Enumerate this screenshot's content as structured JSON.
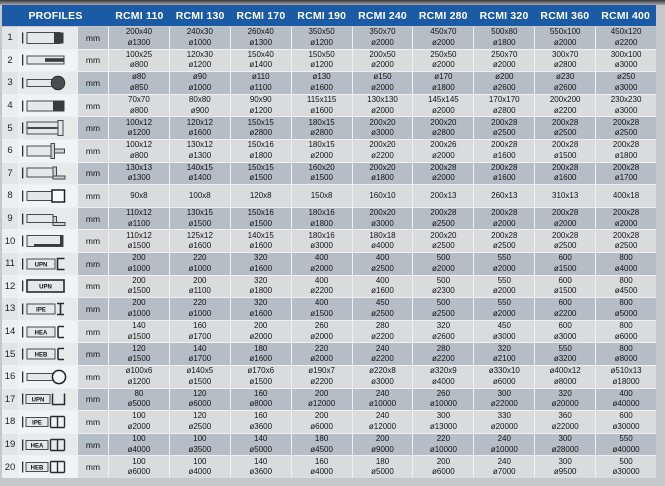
{
  "table": {
    "header": {
      "profiles_label": "PROFILES",
      "unit_label": "mm",
      "columns": [
        "RCMI 110",
        "RCMI 130",
        "RCMI 170",
        "RCMI 190",
        "RCMI 240",
        "RCMI 280",
        "RCMI 320",
        "RCMI 360",
        "RCMI 400"
      ]
    },
    "rows": [
      {
        "num": "1",
        "icon": "flat-bar-on-edge",
        "label": "",
        "cells": [
          [
            "200x40",
            "ø1300"
          ],
          [
            "240x30",
            "ø1000"
          ],
          [
            "260x40",
            "ø1300"
          ],
          [
            "350x50",
            "ø1200"
          ],
          [
            "350x70",
            "ø2000"
          ],
          [
            "450x70",
            "ø2000"
          ],
          [
            "500x80",
            "ø1800"
          ],
          [
            "550x100",
            "ø2000"
          ],
          [
            "450x120",
            "ø2200"
          ]
        ]
      },
      {
        "num": "2",
        "icon": "flat-bar-flat",
        "label": "",
        "cells": [
          [
            "100x25",
            "ø800"
          ],
          [
            "120x30",
            "ø1200"
          ],
          [
            "150x40",
            "ø1400"
          ],
          [
            "150x50",
            "ø1200"
          ],
          [
            "200x50",
            "ø2000"
          ],
          [
            "250x50",
            "ø2000"
          ],
          [
            "250x70",
            "ø2000"
          ],
          [
            "300x70",
            "ø2800"
          ],
          [
            "300x100",
            "ø3000"
          ]
        ]
      },
      {
        "num": "3",
        "icon": "round-bar",
        "label": "",
        "cells": [
          [
            "ø80",
            "ø850"
          ],
          [
            "ø90",
            "ø1000"
          ],
          [
            "ø110",
            "ø1100"
          ],
          [
            "ø130",
            "ø1600"
          ],
          [
            "ø150",
            "ø2000"
          ],
          [
            "ø170",
            "ø1800"
          ],
          [
            "ø200",
            "ø2600"
          ],
          [
            "ø230",
            "ø2600"
          ],
          [
            "ø250",
            "ø3000"
          ]
        ]
      },
      {
        "num": "4",
        "icon": "square-bar",
        "label": "",
        "cells": [
          [
            "70x70",
            "ø800"
          ],
          [
            "80x80",
            "ø900"
          ],
          [
            "90x90",
            "ø1200"
          ],
          [
            "115x115",
            "ø1600"
          ],
          [
            "130x130",
            "ø2000"
          ],
          [
            "145x145",
            "ø2000"
          ],
          [
            "170x170",
            "ø2800"
          ],
          [
            "200x200",
            "ø2200"
          ],
          [
            "230x230",
            "ø3000"
          ]
        ]
      },
      {
        "num": "5",
        "icon": "angle-leg-out",
        "label": "",
        "cells": [
          [
            "100x12",
            "ø1200"
          ],
          [
            "120x12",
            "ø1600"
          ],
          [
            "150x15",
            "ø2800"
          ],
          [
            "180x15",
            "ø2800"
          ],
          [
            "200x20",
            "ø3000"
          ],
          [
            "200x20",
            "ø2800"
          ],
          [
            "200x28",
            "ø2500"
          ],
          [
            "200x28",
            "ø2500"
          ],
          [
            "200x28",
            "ø2500"
          ]
        ]
      },
      {
        "num": "6",
        "icon": "t-profile",
        "label": "",
        "cells": [
          [
            "100x12",
            "ø800"
          ],
          [
            "130x12",
            "ø1300"
          ],
          [
            "150x16",
            "ø1800"
          ],
          [
            "180x15",
            "ø2000"
          ],
          [
            "200x20",
            "ø2200"
          ],
          [
            "200x26",
            "ø2000"
          ],
          [
            "200x28",
            "ø1600"
          ],
          [
            "200x28",
            "ø1500"
          ],
          [
            "200x28",
            "ø1800"
          ]
        ]
      },
      {
        "num": "7",
        "icon": "angle-leg-down",
        "label": "",
        "cells": [
          [
            "130x13",
            "ø1300"
          ],
          [
            "140x15",
            "ø1400"
          ],
          [
            "150x15",
            "ø1500"
          ],
          [
            "160x20",
            "ø1500"
          ],
          [
            "200x20",
            "ø1800"
          ],
          [
            "200x28",
            "ø2000"
          ],
          [
            "200x28",
            "ø1600"
          ],
          [
            "200x28",
            "ø1600"
          ],
          [
            "200x28",
            "ø1700"
          ]
        ]
      },
      {
        "num": "8",
        "icon": "square-tube",
        "label": "",
        "cells": [
          [
            "90x8"
          ],
          [
            "100x8"
          ],
          [
            "120x8"
          ],
          [
            "150x8"
          ],
          [
            "160x10"
          ],
          [
            "200x13"
          ],
          [
            "260x13"
          ],
          [
            "310x13"
          ],
          [
            "400x18"
          ]
        ]
      },
      {
        "num": "9",
        "icon": "angle-leg-in",
        "label": "",
        "cells": [
          [
            "110x12",
            "ø1100"
          ],
          [
            "130x15",
            "ø1500"
          ],
          [
            "150x16",
            "ø1500"
          ],
          [
            "180x16",
            "ø1800"
          ],
          [
            "200x20",
            "ø3000"
          ],
          [
            "200x28",
            "ø2500"
          ],
          [
            "200x28",
            "ø2000"
          ],
          [
            "200x28",
            "ø2000"
          ],
          [
            "200x28",
            "ø2000"
          ]
        ]
      },
      {
        "num": "10",
        "icon": "angle-corner",
        "label": "",
        "cells": [
          [
            "110x12",
            "ø1500"
          ],
          [
            "125x12",
            "ø1600"
          ],
          [
            "140x15",
            "ø1600"
          ],
          [
            "180x16",
            "ø3000"
          ],
          [
            "180x18",
            "ø4000"
          ],
          [
            "200x20",
            "ø2500"
          ],
          [
            "200x28",
            "ø2500"
          ],
          [
            "200x28",
            "ø2500"
          ],
          [
            "200x28",
            "ø2500"
          ]
        ]
      },
      {
        "num": "11",
        "icon": "upn-flanges-out",
        "label": "UPN",
        "cells": [
          [
            "200",
            "ø1000"
          ],
          [
            "220",
            "ø1000"
          ],
          [
            "320",
            "ø1600"
          ],
          [
            "400",
            "ø2000"
          ],
          [
            "400",
            "ø2500"
          ],
          [
            "500",
            "ø2000"
          ],
          [
            "550",
            "ø2000"
          ],
          [
            "600",
            "ø1500"
          ],
          [
            "800",
            "ø4000"
          ]
        ]
      },
      {
        "num": "12",
        "icon": "upn-flanges-in",
        "label": "UPN",
        "cells": [
          [
            "200",
            "ø1500"
          ],
          [
            "200",
            "ø1100"
          ],
          [
            "320",
            "ø1800"
          ],
          [
            "400",
            "ø2200"
          ],
          [
            "400",
            "ø1600"
          ],
          [
            "500",
            "ø2300"
          ],
          [
            "550",
            "ø2000"
          ],
          [
            "600",
            "ø1500"
          ],
          [
            "800",
            "ø4500"
          ]
        ]
      },
      {
        "num": "13",
        "icon": "ipe-beam",
        "label": "IPE",
        "cells": [
          [
            "200",
            "ø1000"
          ],
          [
            "220",
            "ø1000"
          ],
          [
            "320",
            "ø1600"
          ],
          [
            "400",
            "ø1500"
          ],
          [
            "450",
            "ø2500"
          ],
          [
            "500",
            "ø2500"
          ],
          [
            "550",
            "ø2000"
          ],
          [
            "600",
            "ø2200"
          ],
          [
            "800",
            "ø5000"
          ]
        ]
      },
      {
        "num": "14",
        "icon": "hea-beam",
        "label": "HEA",
        "cells": [
          [
            "140",
            "ø1500"
          ],
          [
            "160",
            "ø1700"
          ],
          [
            "200",
            "ø2000"
          ],
          [
            "260",
            "ø2000"
          ],
          [
            "280",
            "ø2200"
          ],
          [
            "320",
            "ø2600"
          ],
          [
            "450",
            "ø3000"
          ],
          [
            "600",
            "ø3000"
          ],
          [
            "800",
            "ø6000"
          ]
        ]
      },
      {
        "num": "15",
        "icon": "heb-beam",
        "label": "HEB",
        "cells": [
          [
            "120",
            "ø1500"
          ],
          [
            "140",
            "ø1700"
          ],
          [
            "180",
            "ø1600"
          ],
          [
            "220",
            "ø2000"
          ],
          [
            "240",
            "ø2200"
          ],
          [
            "280",
            "ø2200"
          ],
          [
            "320",
            "ø2100"
          ],
          [
            "550",
            "ø3200"
          ],
          [
            "800",
            "ø8000"
          ]
        ]
      },
      {
        "num": "16",
        "icon": "round-tube",
        "label": "",
        "cells": [
          [
            "ø100x6",
            "ø1200"
          ],
          [
            "ø140x5",
            "ø1500"
          ],
          [
            "ø170x6",
            "ø1500"
          ],
          [
            "ø190x7",
            "ø2200"
          ],
          [
            "ø220x8",
            "ø3000"
          ],
          [
            "ø320x9",
            "ø4000"
          ],
          [
            "ø330x10",
            "ø6000"
          ],
          [
            "ø400x12",
            "ø8000"
          ],
          [
            "ø510x13",
            "ø18000"
          ]
        ]
      },
      {
        "num": "17",
        "icon": "upn-hard-way",
        "label": "UPN",
        "cells": [
          [
            "80",
            "ø5000"
          ],
          [
            "120",
            "ø6000"
          ],
          [
            "160",
            "ø8000"
          ],
          [
            "200",
            "ø12000"
          ],
          [
            "240",
            "ø10000"
          ],
          [
            "260",
            "ø10000"
          ],
          [
            "300",
            "ø22000"
          ],
          [
            "320",
            "ø20000"
          ],
          [
            "400",
            "ø40000"
          ]
        ]
      },
      {
        "num": "18",
        "icon": "ipe-hard-way",
        "label": "IPE",
        "cells": [
          [
            "100",
            "ø2000"
          ],
          [
            "120",
            "ø2500"
          ],
          [
            "160",
            "ø3600"
          ],
          [
            "200",
            "ø6000"
          ],
          [
            "240",
            "ø12000"
          ],
          [
            "300",
            "ø13000"
          ],
          [
            "330",
            "ø20000"
          ],
          [
            "360",
            "ø22000"
          ],
          [
            "600",
            "ø30000"
          ]
        ]
      },
      {
        "num": "19",
        "icon": "hea-hard-way",
        "label": "HEA",
        "cells": [
          [
            "100",
            "ø4000"
          ],
          [
            "100",
            "ø3500"
          ],
          [
            "140",
            "ø5000"
          ],
          [
            "180",
            "ø4500"
          ],
          [
            "200",
            "ø9000"
          ],
          [
            "220",
            "ø10000"
          ],
          [
            "240",
            "ø10000"
          ],
          [
            "300",
            "ø28000"
          ],
          [
            "550",
            "ø40000"
          ]
        ]
      },
      {
        "num": "20",
        "icon": "heb-hard-way",
        "label": "HEB",
        "cells": [
          [
            "100",
            "ø6000"
          ],
          [
            "100",
            "ø4000"
          ],
          [
            "140",
            "ø3600"
          ],
          [
            "160",
            "ø4000"
          ],
          [
            "180",
            "ø5000"
          ],
          [
            "200",
            "ø6000"
          ],
          [
            "240",
            "ø7000"
          ],
          [
            "300",
            "ø9500"
          ],
          [
            "500",
            "ø30000"
          ]
        ]
      }
    ]
  },
  "colors": {
    "header_blue": "#1b5aa5",
    "row_dark": "#b5bdc6",
    "row_light": "#d9dbdd",
    "page_background": "#c6c7c8",
    "header_text": "#ffffff"
  }
}
